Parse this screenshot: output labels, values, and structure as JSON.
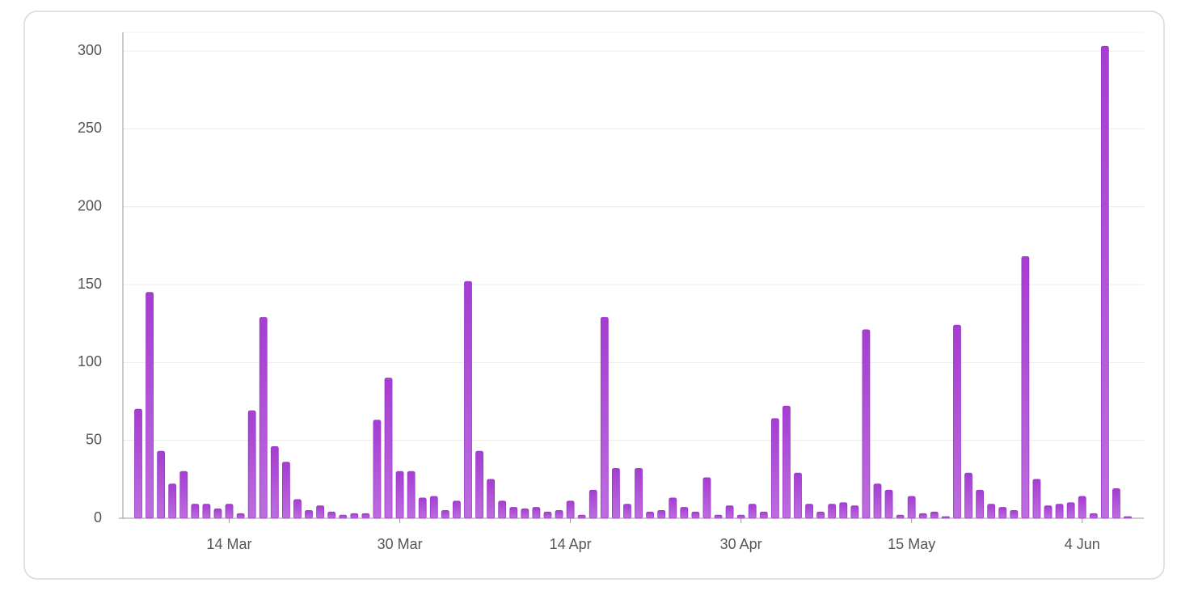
{
  "chart_data": {
    "type": "bar",
    "categories": [
      null,
      null,
      null,
      null,
      null,
      null,
      null,
      null,
      "14 Mar",
      null,
      null,
      null,
      null,
      null,
      null,
      null,
      null,
      null,
      null,
      null,
      null,
      null,
      null,
      "30 Mar",
      null,
      null,
      null,
      null,
      null,
      null,
      null,
      null,
      null,
      null,
      null,
      null,
      null,
      null,
      "14 Apr",
      null,
      null,
      null,
      null,
      null,
      null,
      null,
      null,
      null,
      null,
      null,
      null,
      null,
      null,
      "30 Apr",
      null,
      null,
      null,
      null,
      null,
      null,
      null,
      null,
      null,
      null,
      null,
      null,
      null,
      null,
      "15 May",
      null,
      null,
      null,
      null,
      null,
      null,
      null,
      null,
      null,
      null,
      null,
      null,
      null,
      null,
      "4 Jun",
      null,
      null,
      null,
      null
    ],
    "values": [
      70,
      145,
      43,
      22,
      30,
      9,
      9,
      6,
      9,
      3,
      69,
      129,
      46,
      36,
      12,
      5,
      8,
      4,
      2,
      3,
      3,
      63,
      90,
      30,
      30,
      13,
      14,
      5,
      11,
      152,
      43,
      25,
      11,
      7,
      6,
      7,
      4,
      5,
      11,
      2,
      18,
      129,
      32,
      9,
      32,
      4,
      5,
      13,
      7,
      4,
      26,
      2,
      8,
      2,
      9,
      4,
      64,
      72,
      29,
      9,
      4,
      9,
      10,
      8,
      121,
      22,
      18,
      2,
      14,
      3,
      4,
      1,
      124,
      29,
      18,
      9,
      7,
      5,
      168,
      25,
      8,
      9,
      10,
      14,
      3,
      303,
      19,
      1
    ],
    "color": "#b55edb",
    "ylim": [
      0,
      312
    ],
    "yticks": [
      0,
      50,
      100,
      150,
      200,
      250,
      300
    ],
    "grid": true
  }
}
